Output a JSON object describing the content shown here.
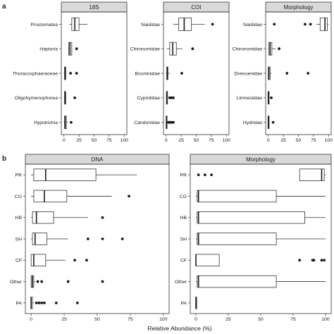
{
  "xlabel": "Relative Abundance (%)",
  "chart_data": [
    {
      "type": "box",
      "panel": "a",
      "facet": "18S",
      "xlim": [
        0,
        100
      ],
      "xticks": [
        0,
        25,
        50,
        75,
        100
      ],
      "grid": false,
      "categories": [
        "Prostomatea",
        "Haptoria",
        "Thoracosphaeraceae",
        "Oligohymenophorea",
        "Hypotrichia"
      ],
      "boxes": [
        {
          "q1": 13,
          "median": 18,
          "q3": 25,
          "min": 9,
          "max": 39,
          "outliers": []
        },
        {
          "q1": 8,
          "median": 10,
          "q3": 13,
          "min": 7,
          "max": 14,
          "outliers": [
            21
          ]
        },
        {
          "q1": 1,
          "median": 2,
          "q3": 3,
          "min": 0,
          "max": 4,
          "outliers": [
            11,
            21
          ]
        },
        {
          "q1": 1,
          "median": 2,
          "q3": 3,
          "min": 0,
          "max": 4,
          "outliers": [
            18
          ]
        },
        {
          "q1": 1,
          "median": 2,
          "q3": 4,
          "min": 0,
          "max": 6,
          "outliers": [
            12
          ]
        }
      ]
    },
    {
      "type": "box",
      "panel": "a",
      "facet": "COI",
      "xlim": [
        0,
        100
      ],
      "xticks": [
        0,
        25,
        50,
        75,
        100
      ],
      "grid": false,
      "categories": [
        "Naididae",
        "Chironomidae",
        "Bosminidae",
        "Cyprididae",
        "Candonidae"
      ],
      "boxes": [
        {
          "q1": 21,
          "median": 30,
          "q3": 42,
          "min": 12,
          "max": 64,
          "outliers": [
            77
          ]
        },
        {
          "q1": 6,
          "median": 11,
          "q3": 17,
          "min": 1,
          "max": 27,
          "outliers": [
            44
          ]
        },
        {
          "q1": 1,
          "median": 2,
          "q3": 3,
          "min": 0,
          "max": 6,
          "outliers": [
            26
          ]
        },
        {
          "q1": 1,
          "median": 1,
          "q3": 2,
          "min": 0,
          "max": 3,
          "outliers": [
            6,
            9,
            12
          ]
        },
        {
          "q1": 0,
          "median": 1,
          "q3": 1,
          "min": 0,
          "max": 2,
          "outliers": [
            4,
            6,
            8,
            10,
            12
          ]
        }
      ]
    },
    {
      "type": "box",
      "panel": "a",
      "facet": "Morphology",
      "xlim": [
        0,
        100
      ],
      "xticks": [
        0,
        25,
        50,
        75,
        100
      ],
      "grid": false,
      "categories": [
        "Naididae",
        "Chironomidae",
        "Dreissenidae",
        "Limnesiidae",
        "Hydridae"
      ],
      "boxes": [
        {
          "q1": 86,
          "median": 94,
          "q3": 98,
          "min": 80,
          "max": 100,
          "outliers": [
            10,
            61,
            70
          ]
        },
        {
          "q1": 1,
          "median": 3,
          "q3": 6,
          "min": 0,
          "max": 12,
          "outliers": [
            18
          ]
        },
        {
          "q1": 0,
          "median": 1,
          "q3": 3,
          "min": 0,
          "max": 5,
          "outliers": [
            31,
            66
          ]
        },
        {
          "q1": 0,
          "median": 0,
          "q3": 1,
          "min": 0,
          "max": 2,
          "outliers": [
            5
          ]
        },
        {
          "q1": 0,
          "median": 0,
          "q3": 1,
          "min": 0,
          "max": 2,
          "outliers": [
            8
          ]
        }
      ]
    },
    {
      "type": "box",
      "panel": "b",
      "facet": "DNA",
      "xlim": [
        0,
        100
      ],
      "xticks": [
        0,
        25,
        50,
        75,
        100
      ],
      "grid": false,
      "categories": [
        "PR",
        "CG",
        "HB",
        "SH",
        "CF",
        "Other",
        "PA"
      ],
      "boxes": [
        {
          "q1": 2,
          "median": 11,
          "q3": 49,
          "min": 0,
          "max": 80,
          "outliers": []
        },
        {
          "q1": 2,
          "median": 10,
          "q3": 27,
          "min": 0,
          "max": 61,
          "outliers": [
            74
          ]
        },
        {
          "q1": 1,
          "median": 4,
          "q3": 17,
          "min": 0,
          "max": 43,
          "outliers": [
            54
          ]
        },
        {
          "q1": 1,
          "median": 3,
          "q3": 12,
          "min": 0,
          "max": 28,
          "outliers": [
            43,
            54,
            69
          ]
        },
        {
          "q1": 0,
          "median": 2,
          "q3": 11,
          "min": 0,
          "max": 26,
          "outliers": [
            33,
            42
          ]
        },
        {
          "q1": 0,
          "median": 1,
          "q3": 2,
          "min": 0,
          "max": 3,
          "outliers": [
            5,
            8,
            28,
            54
          ]
        },
        {
          "q1": 0,
          "median": 0,
          "q3": 1,
          "min": 0,
          "max": 2,
          "outliers": [
            4,
            6,
            8,
            10,
            19,
            35
          ]
        }
      ]
    },
    {
      "type": "box",
      "panel": "b",
      "facet": "Morphology",
      "xlim": [
        0,
        100
      ],
      "xticks": [
        0,
        25,
        50,
        75,
        100
      ],
      "grid": false,
      "categories": [
        "PR",
        "CG",
        "HB",
        "SH",
        "CF",
        "Other",
        "PA"
      ],
      "boxes": [
        {
          "q1": 80,
          "median": 97,
          "q3": 99,
          "min": 80,
          "max": 100,
          "outliers": [
            2,
            7,
            12
          ]
        },
        {
          "q1": 1,
          "median": 2,
          "q3": 62,
          "min": 0,
          "max": 100,
          "outliers": []
        },
        {
          "q1": 1,
          "median": 2,
          "q3": 84,
          "min": 0,
          "max": 100,
          "outliers": []
        },
        {
          "q1": 1,
          "median": 2,
          "q3": 62,
          "min": 0,
          "max": 100,
          "outliers": []
        },
        {
          "q1": 0,
          "median": 0,
          "q3": 18,
          "min": 0,
          "max": 18,
          "outliers": [
            80,
            90,
            91,
            97,
            99
          ]
        },
        {
          "q1": 1,
          "median": 2,
          "q3": 62,
          "min": 0,
          "max": 100,
          "outliers": []
        },
        {
          "q1": 0,
          "median": 0,
          "q3": 0,
          "min": 0,
          "max": 1,
          "outliers": []
        }
      ]
    }
  ]
}
